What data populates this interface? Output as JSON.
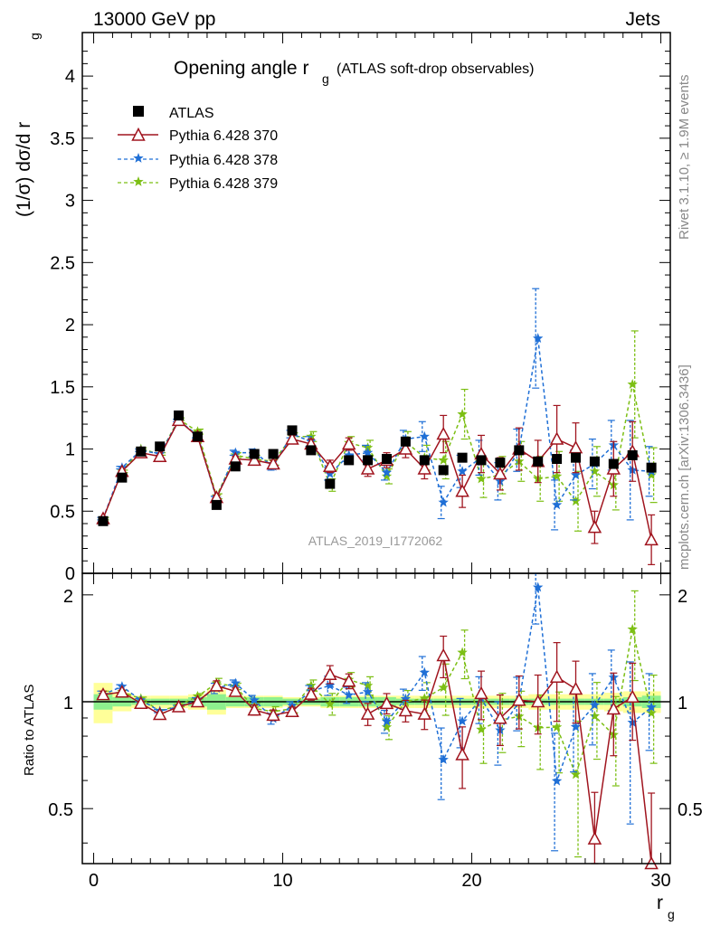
{
  "header": {
    "left": "13000 GeV pp",
    "right": "Jets"
  },
  "side": {
    "rivet": "Rivet 3.1.10, ≥ 1.9M events",
    "mcplots": "mcplots.cern.ch [arXiv:1306.3436]"
  },
  "chart_data": {
    "type": "scatter",
    "title_main": "Opening angle r",
    "title_sub": "g",
    "title_paren": "(ATLAS soft-drop observables)",
    "analysis_id": "ATLAS_2019_I1772062",
    "xlabel": "r",
    "xlabel_sub": "g",
    "ylabel_main": "(1/σ) dσ/d r",
    "ylabel_sub": "g",
    "ratio_ylabel": "Ratio to ATLAS",
    "xlim": [
      -0.6,
      30.5
    ],
    "ylim": [
      0,
      4.35
    ],
    "ratio_ylim": [
      0.35,
      2.3
    ],
    "main_yticks": [
      "0",
      "0.5",
      "1",
      "1.5",
      "2",
      "2.5",
      "3",
      "3.5",
      "4"
    ],
    "xticks": [
      "0",
      "10",
      "20",
      "30"
    ],
    "ratio_yticks": [
      "0.5",
      "1",
      "2"
    ],
    "colors": {
      "atlas": "#000000",
      "p370": "#a0141e",
      "p378": "#1f6fd6",
      "p379": "#7cbf14",
      "band_inner": "#8ef08e",
      "band_outer": "#ffff99"
    },
    "x": [
      0.5,
      1.5,
      2.5,
      3.5,
      4.5,
      5.5,
      6.5,
      7.5,
      8.5,
      9.5,
      10.5,
      11.5,
      12.5,
      13.5,
      14.5,
      15.5,
      16.5,
      17.5,
      18.5,
      19.5,
      20.5,
      21.5,
      22.5,
      23.5,
      24.5,
      25.5,
      26.5,
      27.5,
      28.5,
      29.5
    ],
    "series": [
      {
        "name": "ATLAS",
        "marker": "square",
        "values": [
          0.42,
          0.77,
          0.98,
          1.02,
          1.27,
          1.1,
          0.55,
          0.86,
          0.96,
          0.96,
          1.15,
          0.99,
          0.72,
          0.91,
          0.91,
          0.92,
          1.06,
          0.91,
          0.83,
          0.93,
          0.91,
          0.89,
          0.99,
          0.9,
          0.92,
          0.93,
          0.9,
          0.88,
          0.95,
          0.85
        ]
      },
      {
        "name": "Pythia 6.428 370",
        "marker": "triangle",
        "style": "solid",
        "values": [
          0.44,
          0.82,
          0.97,
          0.94,
          1.23,
          1.1,
          0.61,
          0.92,
          0.91,
          0.88,
          1.08,
          1.04,
          0.86,
          1.04,
          0.84,
          0.91,
          1.0,
          0.84,
          1.12,
          0.66,
          0.96,
          0.8,
          1.0,
          0.9,
          1.08,
          1.01,
          0.37,
          0.84,
          0.98,
          0.27
        ],
        "err": [
          0.01,
          0.01,
          0.01,
          0.01,
          0.01,
          0.02,
          0.02,
          0.02,
          0.03,
          0.03,
          0.03,
          0.04,
          0.05,
          0.05,
          0.06,
          0.06,
          0.07,
          0.08,
          0.15,
          0.13,
          0.15,
          0.13,
          0.17,
          0.17,
          0.27,
          0.2,
          0.13,
          0.22,
          0.24,
          0.2
        ]
      },
      {
        "name": "Pythia 6.428 378",
        "marker": "star",
        "style": "dashed",
        "values": [
          0.44,
          0.85,
          0.99,
          0.96,
          1.23,
          1.11,
          0.6,
          0.97,
          0.97,
          0.86,
          1.12,
          1.06,
          0.8,
          0.95,
          0.97,
          0.81,
          1.08,
          1.1,
          0.57,
          0.82,
          0.93,
          0.74,
          0.99,
          1.89,
          0.55,
          0.79,
          0.88,
          1.03,
          0.83,
          0.82
        ],
        "err": [
          0.01,
          0.01,
          0.01,
          0.01,
          0.01,
          0.02,
          0.02,
          0.02,
          0.03,
          0.03,
          0.03,
          0.04,
          0.05,
          0.05,
          0.06,
          0.06,
          0.07,
          0.12,
          0.13,
          0.13,
          0.14,
          0.15,
          0.17,
          0.4,
          0.2,
          0.2,
          0.2,
          0.2,
          0.4,
          0.2
        ]
      },
      {
        "name": "Pythia 6.428 379",
        "marker": "star",
        "style": "dashed",
        "values": [
          0.44,
          0.82,
          1.0,
          0.96,
          1.24,
          1.14,
          0.62,
          0.95,
          0.92,
          0.9,
          1.1,
          1.1,
          0.71,
          1.05,
          1.01,
          0.78,
          1.06,
          0.93,
          0.91,
          1.28,
          0.76,
          0.79,
          0.9,
          0.76,
          0.78,
          0.58,
          0.82,
          0.71,
          1.52,
          0.79
        ],
        "err": [
          0.01,
          0.01,
          0.01,
          0.01,
          0.01,
          0.02,
          0.02,
          0.02,
          0.03,
          0.03,
          0.03,
          0.04,
          0.05,
          0.05,
          0.06,
          0.06,
          0.08,
          0.1,
          0.15,
          0.2,
          0.15,
          0.15,
          0.16,
          0.18,
          0.2,
          0.24,
          0.2,
          0.2,
          0.43,
          0.22
        ]
      }
    ],
    "band_inner": [
      0.05,
      0.03,
      0.02,
      0.02,
      0.02,
      0.03,
      0.05,
      0.03,
      0.03,
      0.03,
      0.02,
      0.02,
      0.03,
      0.03,
      0.03,
      0.03,
      0.02,
      0.02,
      0.02,
      0.02,
      0.02,
      0.02,
      0.02,
      0.02,
      0.02,
      0.02,
      0.02,
      0.02,
      0.03,
      0.04
    ],
    "band_outer": [
      0.13,
      0.06,
      0.04,
      0.04,
      0.04,
      0.05,
      0.08,
      0.04,
      0.04,
      0.04,
      0.03,
      0.03,
      0.04,
      0.04,
      0.04,
      0.04,
      0.04,
      0.04,
      0.04,
      0.04,
      0.04,
      0.04,
      0.04,
      0.05,
      0.05,
      0.05,
      0.05,
      0.06,
      0.07,
      0.07
    ]
  }
}
